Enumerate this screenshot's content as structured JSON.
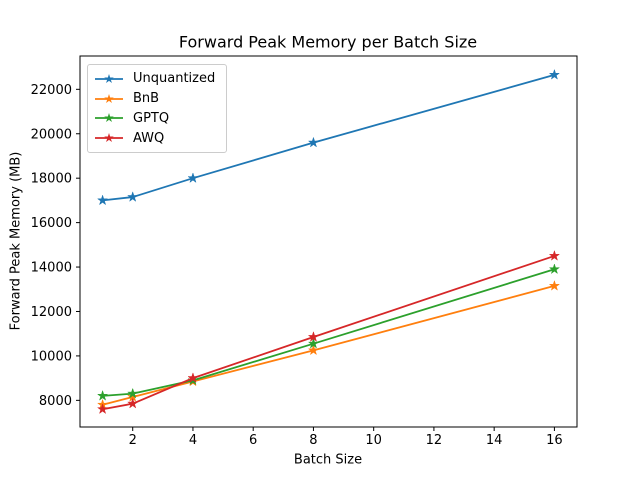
{
  "chart_data": {
    "type": "line",
    "title": "Forward Peak Memory per Batch Size",
    "xlabel": "Batch Size",
    "ylabel": "Forward Peak Memory (MB)",
    "x": [
      1,
      2,
      4,
      8,
      16
    ],
    "series": [
      {
        "name": "Unquantized",
        "color": "#1f77b4",
        "values": [
          17000,
          17150,
          18000,
          19600,
          22650
        ]
      },
      {
        "name": "BnB",
        "color": "#ff7f0e",
        "values": [
          7800,
          8150,
          8850,
          10250,
          13150
        ]
      },
      {
        "name": "GPTQ",
        "color": "#2ca02c",
        "values": [
          8200,
          8300,
          8900,
          10550,
          13900
        ]
      },
      {
        "name": "AWQ",
        "color": "#d62728",
        "values": [
          7600,
          7850,
          9000,
          10850,
          14500
        ]
      }
    ],
    "xticks": [
      2,
      4,
      6,
      8,
      10,
      12,
      14,
      16
    ],
    "yticks": [
      8000,
      10000,
      12000,
      14000,
      16000,
      18000,
      20000,
      22000
    ],
    "xlim": [
      0.25,
      16.75
    ],
    "ylim": [
      6800,
      23500
    ],
    "grid": false,
    "marker": "star",
    "legend_position": "upper-left",
    "axis_color": "#000000",
    "legend_border_color": "#cccccc",
    "background_color": "#ffffff"
  }
}
